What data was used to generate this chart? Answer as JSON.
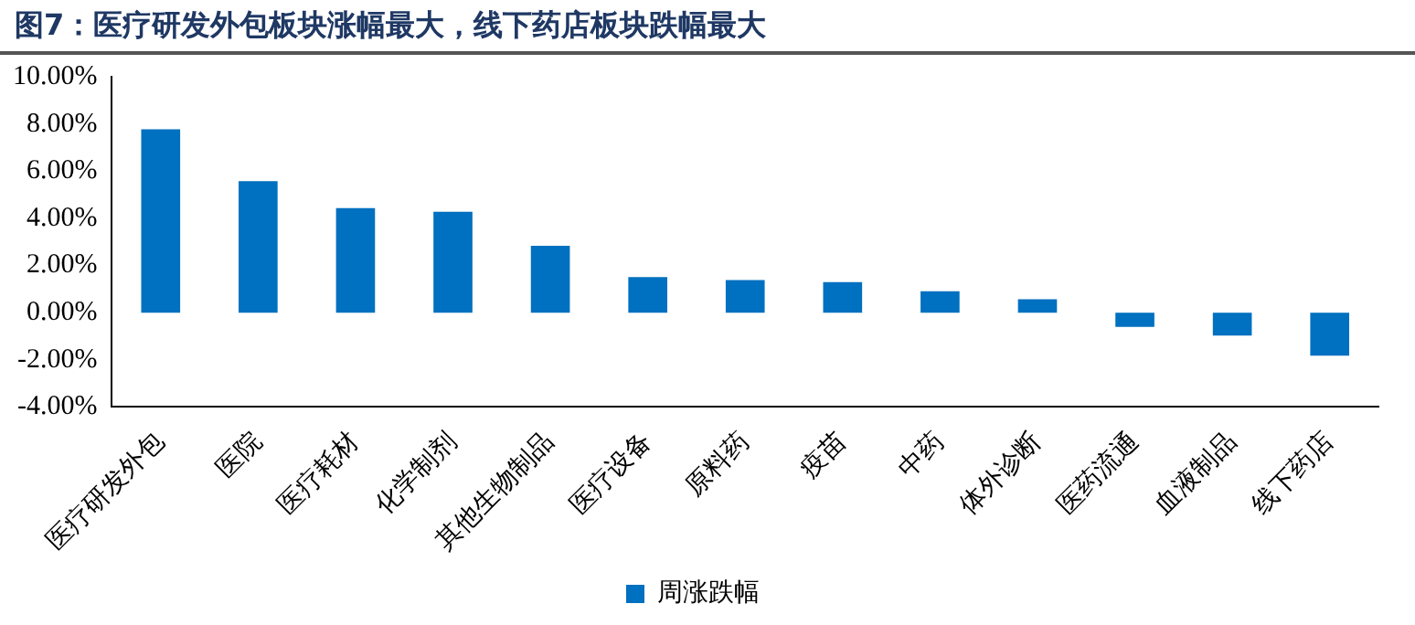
{
  "chart_data": {
    "type": "bar",
    "title": "图7：医疗研发外包板块涨幅最大，线下药店板块跌幅最大",
    "categories": [
      "医疗研发外包",
      "医院",
      "医疗耗材",
      "化学制剂",
      "其他生物制品",
      "医疗设备",
      "原料药",
      "疫苗",
      "中药",
      "体外诊断",
      "医药流通",
      "血液制品",
      "线下药店"
    ],
    "series": [
      {
        "name": "周涨跌幅",
        "color": "#0070c0",
        "values": [
          7.77,
          5.57,
          4.43,
          4.28,
          2.83,
          1.51,
          1.38,
          1.29,
          0.91,
          0.57,
          -0.6,
          -0.97,
          -1.82
        ]
      }
    ],
    "ylim": [
      -4,
      10
    ],
    "yticks": [
      {
        "value": -4,
        "label": "-4.00%"
      },
      {
        "value": -2,
        "label": "-2.00%"
      },
      {
        "value": 0,
        "label": "0.00%"
      },
      {
        "value": 2,
        "label": "2.00%"
      },
      {
        "value": 4,
        "label": "4.00%"
      },
      {
        "value": 6,
        "label": "6.00%"
      },
      {
        "value": 8,
        "label": "8.00%"
      },
      {
        "value": 10,
        "label": "10.00%"
      }
    ],
    "grid": false,
    "legend": "bottom"
  }
}
